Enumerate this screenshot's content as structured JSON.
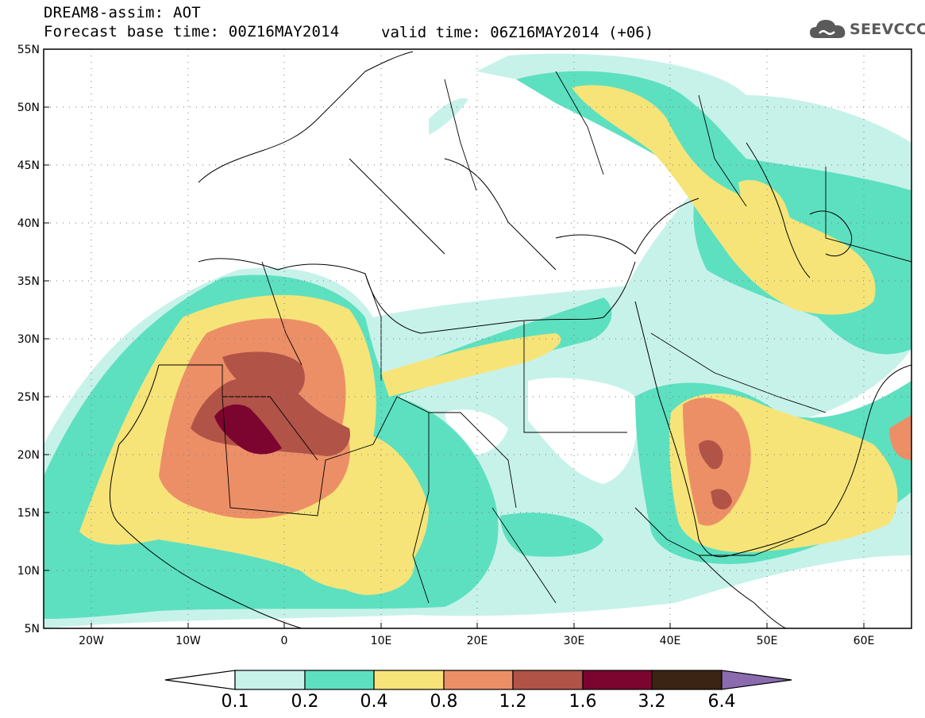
{
  "header": {
    "title": "DREAM8-assim: AOT",
    "base_time": "Forecast base time: 00Z16MAY2014",
    "valid_time": "valid time: 06Z16MAY2014 (+06)"
  },
  "logo": {
    "text": "SEEVCCC",
    "icon": "cloud-icon",
    "color": "#5a5a5a"
  },
  "map": {
    "lat_labels": [
      "55N",
      "50N",
      "45N",
      "40N",
      "35N",
      "30N",
      "25N",
      "20N",
      "15N",
      "10N",
      "5N"
    ],
    "lon_labels": [
      "20W",
      "10W",
      "0",
      "10E",
      "20E",
      "30E",
      "40E",
      "50E",
      "60E"
    ],
    "grid": "dotted"
  },
  "colorbar": {
    "levels": [
      "0.1",
      "0.2",
      "0.4",
      "0.8",
      "1.2",
      "1.6",
      "3.2",
      "6.4"
    ],
    "colors": [
      "#c7f2ea",
      "#5de0c0",
      "#f7e479",
      "#ec8f67",
      "#b25348",
      "#7c0530",
      "#3c2414"
    ],
    "under_color": "#ffffff",
    "over_color": "#8b6bb0"
  }
}
